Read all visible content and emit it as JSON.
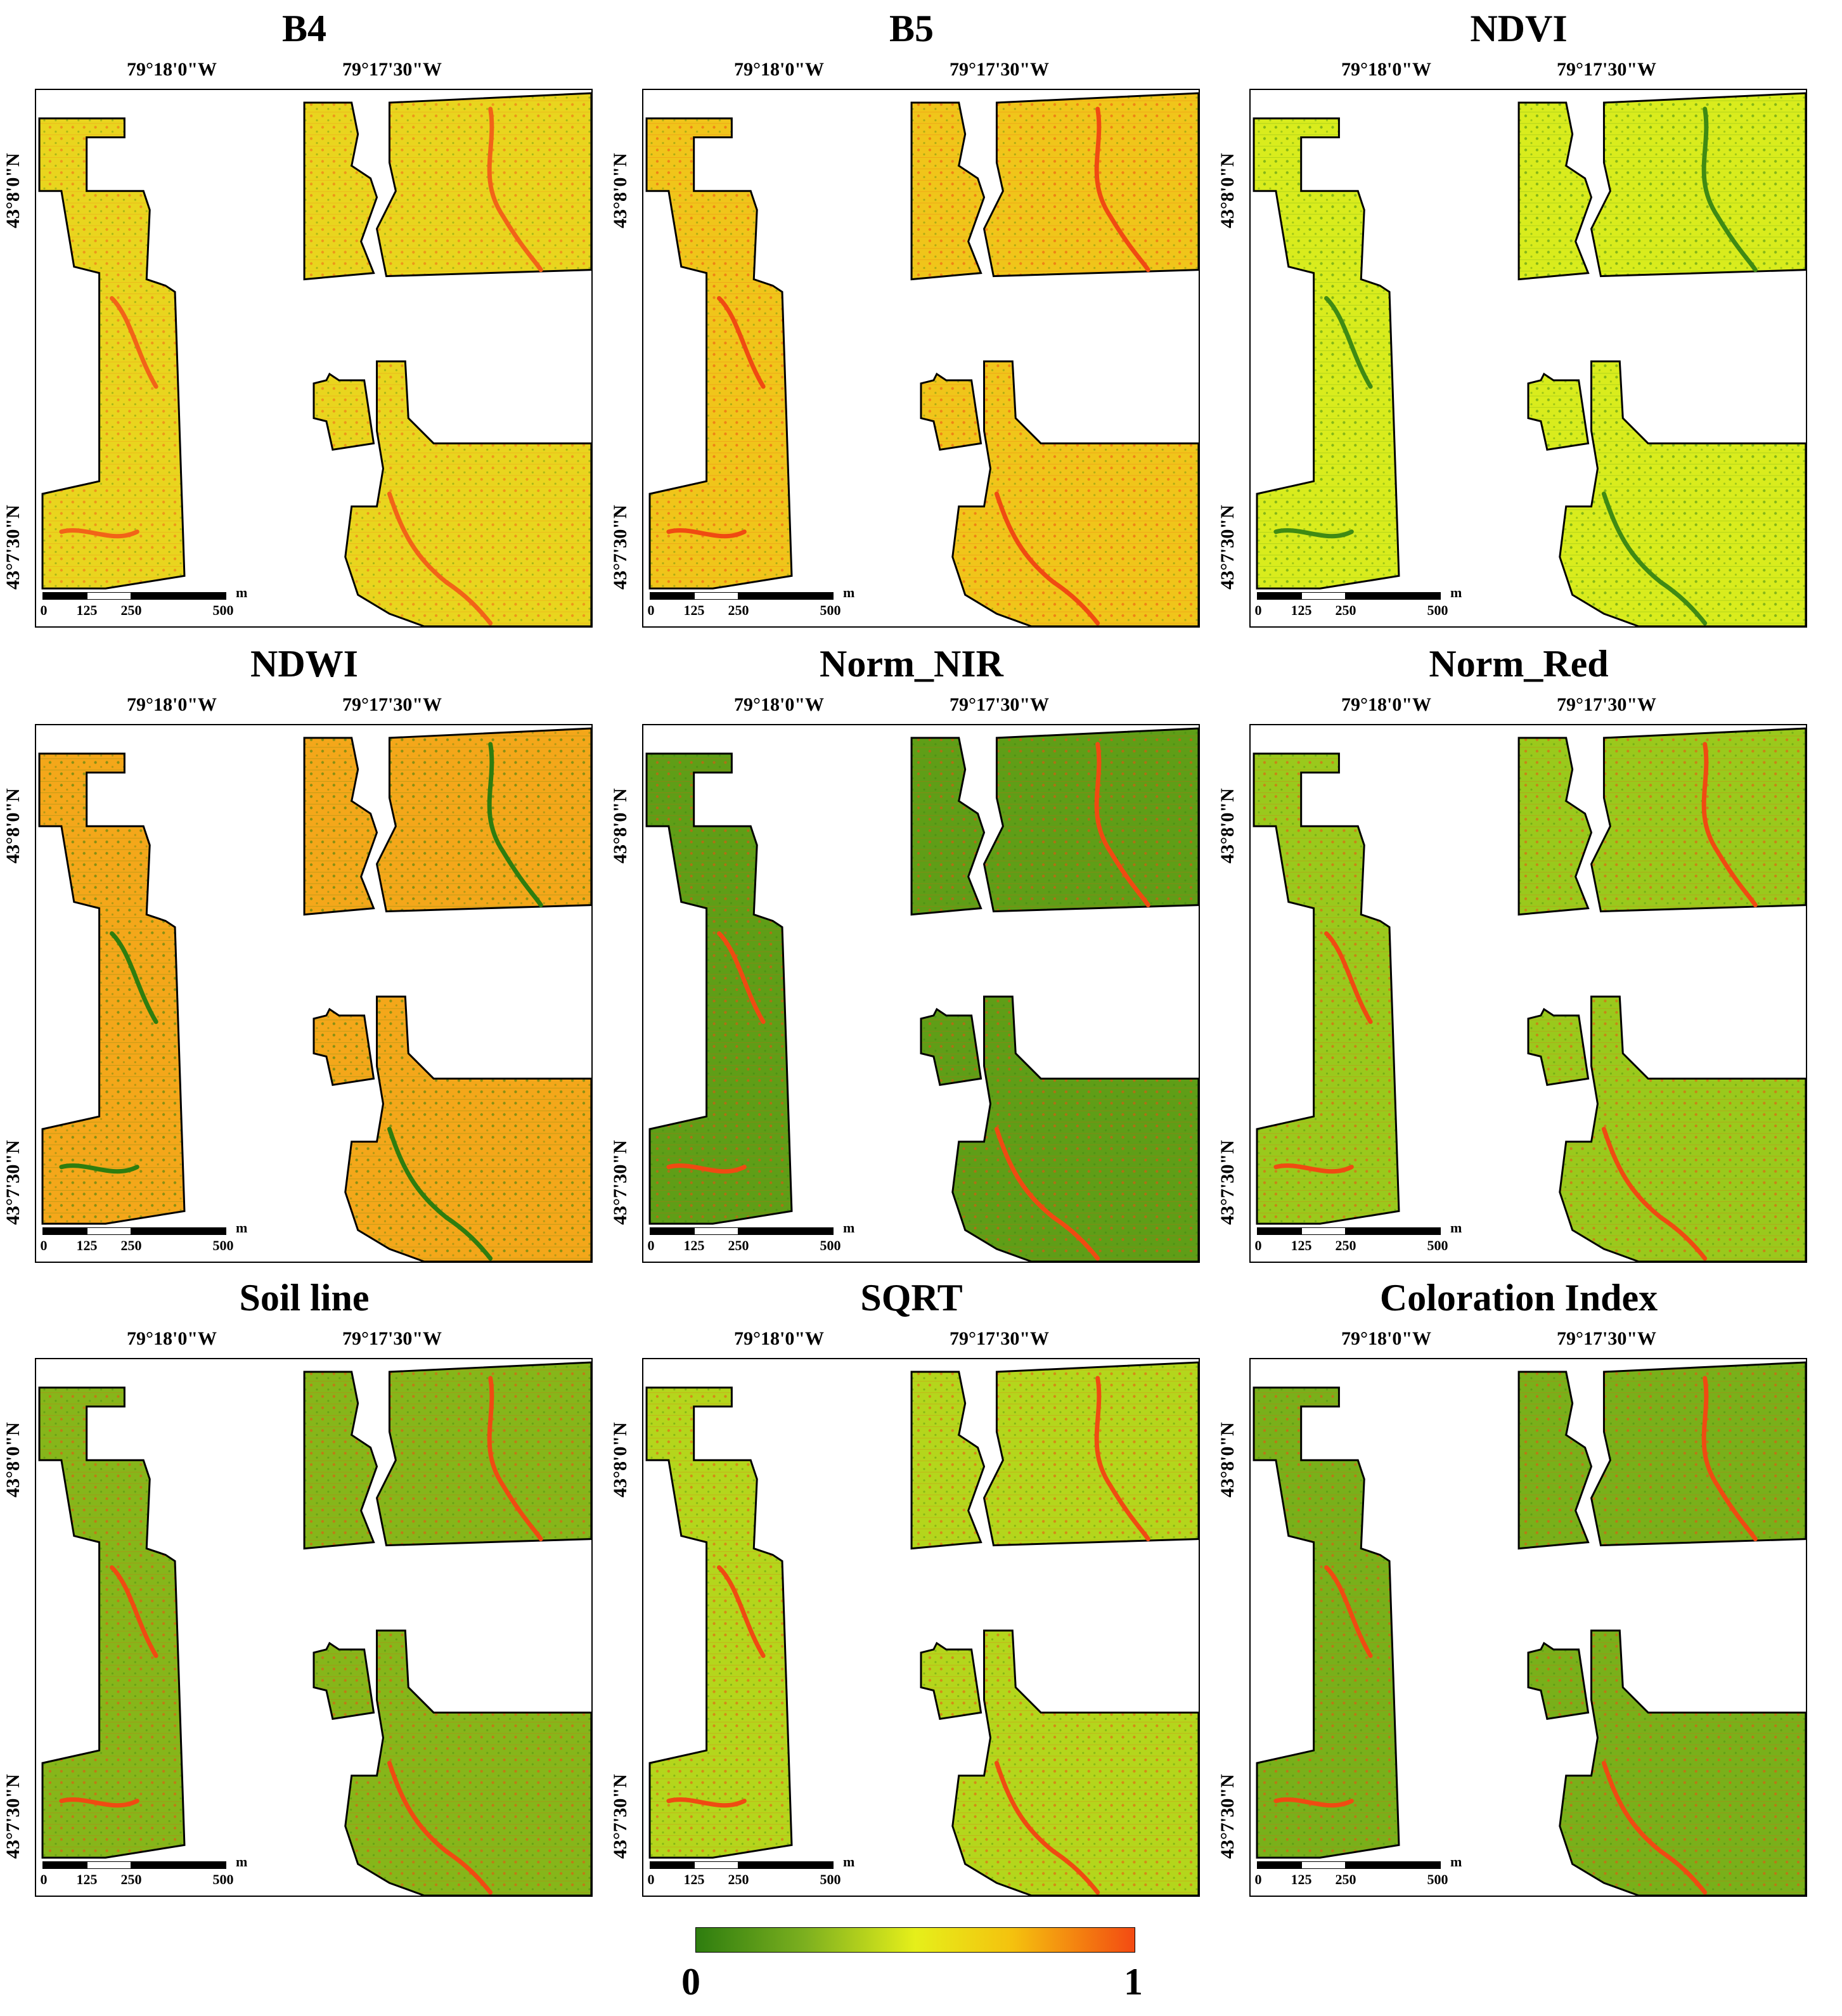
{
  "lon_labels": [
    "79°18'0\"W",
    "79°17'30\"W"
  ],
  "lat_labels": [
    "43°8'0\"N",
    "43°7'30\"N"
  ],
  "scalebar": {
    "ticks": [
      "0",
      "125",
      "250",
      "500"
    ],
    "unit": "m"
  },
  "colorbar": {
    "min_label": "0",
    "max_label": "1",
    "colors": [
      "#2e7d0f",
      "#7db01f",
      "#e6ef1a",
      "#f4c20e",
      "#f34a12"
    ]
  },
  "panels": [
    {
      "title": "B4",
      "base_color": "#e9d51e",
      "accent_color": "#f26318"
    },
    {
      "title": "B5",
      "base_color": "#f0c51a",
      "accent_color": "#f04a12"
    },
    {
      "title": "NDVI",
      "base_color": "#d9ec1d",
      "accent_color": "#3f8a14"
    },
    {
      "title": "NDWI",
      "base_color": "#f4a71a",
      "accent_color": "#2e7d0f"
    },
    {
      "title": "Norm_NIR",
      "base_color": "#5f9e17",
      "accent_color": "#f04a12"
    },
    {
      "title": "Norm_Red",
      "base_color": "#9ac91c",
      "accent_color": "#f04a12"
    },
    {
      "title": "Soil line",
      "base_color": "#86b61a",
      "accent_color": "#f04a12"
    },
    {
      "title": "SQRT",
      "base_color": "#b4d61c",
      "accent_color": "#f04a12"
    },
    {
      "title": "Coloration Index",
      "base_color": "#79b01a",
      "accent_color": "#f04a12"
    }
  ]
}
